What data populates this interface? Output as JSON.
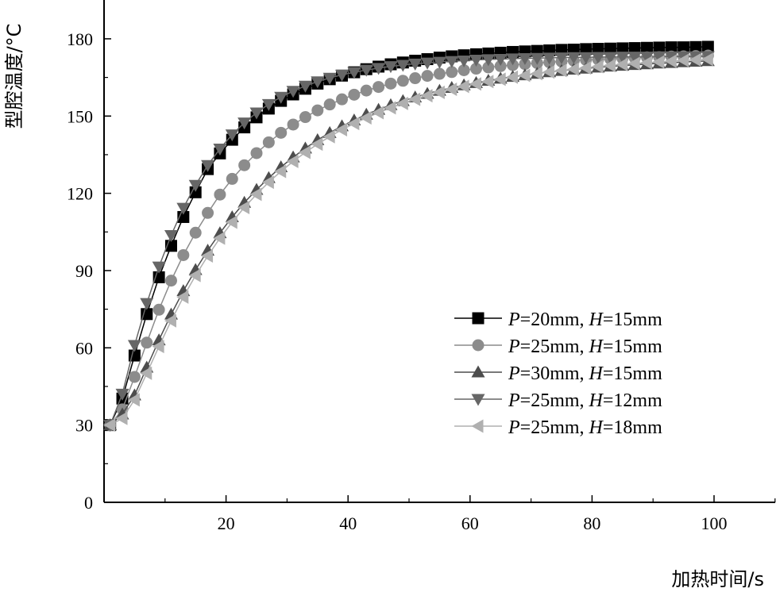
{
  "chart_data": {
    "type": "line",
    "xlabel": "加热时间/s",
    "ylabel": "型腔温度/°C",
    "xlim": [
      0,
      110
    ],
    "ylim": [
      0,
      180
    ],
    "x_ticks": [
      20,
      40,
      60,
      80,
      100
    ],
    "y_ticks": [
      0,
      30,
      60,
      90,
      120,
      150,
      180
    ],
    "grid": false,
    "legend_position": "lower-right",
    "x": [
      1,
      3,
      5,
      7,
      9,
      11,
      13,
      15,
      17,
      19,
      21,
      23,
      25,
      27,
      29,
      31,
      33,
      35,
      37,
      39,
      41,
      43,
      45,
      47,
      49,
      51,
      53,
      55,
      57,
      59,
      61,
      63,
      65,
      67,
      69,
      71,
      73,
      75,
      77,
      79,
      81,
      83,
      85,
      87,
      89,
      91,
      93,
      95,
      97,
      99
    ],
    "series": [
      {
        "name": "P=20mm, H=15mm",
        "name_parts": {
          "p_var": "P",
          "p_val": "=20mm, ",
          "h_var": "H",
          "h_val": "=15mm"
        },
        "marker": "square",
        "color": "#000000",
        "values": [
          30.0,
          40.3,
          57.0,
          73.1,
          87.4,
          99.6,
          110.8,
          120.4,
          129.4,
          135.5,
          140.8,
          145.6,
          149.5,
          152.9,
          155.9,
          158.4,
          160.6,
          162.6,
          164.3,
          165.7,
          167.0,
          168.2,
          169.2,
          170.1,
          170.8,
          171.5,
          172.1,
          172.7,
          173.2,
          173.6,
          174.0,
          174.3,
          174.6,
          174.9,
          175.1,
          175.3,
          175.5,
          175.7,
          175.8,
          176.0,
          176.1,
          176.2,
          176.3,
          176.4,
          176.5,
          176.6,
          176.7,
          176.7,
          176.8,
          176.9
        ]
      },
      {
        "name": "P=25mm, H=15mm",
        "name_parts": {
          "p_var": "P",
          "p_val": "=25mm, ",
          "h_var": "H",
          "h_val": "=15mm"
        },
        "marker": "circle",
        "color": "#8c8c8c",
        "values": [
          30.0,
          36.1,
          48.7,
          62.0,
          74.8,
          86.1,
          96.0,
          104.7,
          112.4,
          119.5,
          125.6,
          130.9,
          135.6,
          139.8,
          143.5,
          146.7,
          149.6,
          152.2,
          154.5,
          156.5,
          158.3,
          159.9,
          161.3,
          162.6,
          163.7,
          164.7,
          165.6,
          166.4,
          167.1,
          167.8,
          168.4,
          168.9,
          169.4,
          169.8,
          170.2,
          170.6,
          170.9,
          171.2,
          171.5,
          171.8,
          172.0,
          172.2,
          172.4,
          172.6,
          172.8,
          172.9,
          173.1,
          173.2,
          173.3,
          173.5
        ]
      },
      {
        "name": "P=30mm, H=15mm",
        "name_parts": {
          "p_var": "P",
          "p_val": "=30mm, ",
          "h_var": "H",
          "h_val": "=15mm"
        },
        "marker": "triangle-up",
        "color": "#4d4d4d",
        "values": [
          30.0,
          34.2,
          41.6,
          52.4,
          63.0,
          73.0,
          82.1,
          90.3,
          97.8,
          104.6,
          110.8,
          116.4,
          121.4,
          126.0,
          130.2,
          134.0,
          137.5,
          140.7,
          143.5,
          146.1,
          148.4,
          150.6,
          152.5,
          154.3,
          155.9,
          157.3,
          158.7,
          159.9,
          161.0,
          162.0,
          162.9,
          163.8,
          164.6,
          165.3,
          165.9,
          166.5,
          167.1,
          167.6,
          168.1,
          168.5,
          168.9,
          169.3,
          169.6,
          169.9,
          170.2,
          170.5,
          170.7,
          171.0,
          171.2,
          171.4
        ]
      },
      {
        "name": "P=25mm, H=12mm",
        "name_parts": {
          "p_var": "P",
          "p_val": "=25mm, ",
          "h_var": "H",
          "h_val": "=12mm"
        },
        "marker": "triangle-down",
        "color": "#666666",
        "values": [
          30.0,
          42.1,
          61.0,
          77.3,
          91.5,
          103.7,
          114.3,
          123.2,
          130.9,
          137.3,
          142.8,
          147.4,
          151.3,
          154.6,
          157.4,
          159.7,
          161.7,
          163.4,
          164.8,
          166.0,
          167.0,
          167.9,
          168.6,
          169.3,
          169.8,
          170.3,
          170.7,
          171.0,
          171.3,
          171.5,
          171.8,
          172.0,
          172.1,
          172.3,
          172.4,
          172.5,
          172.6,
          172.7,
          172.8,
          172.8,
          172.9,
          172.9,
          173.0,
          173.0,
          173.0,
          173.1,
          173.1,
          173.1,
          173.1,
          173.2
        ]
      },
      {
        "name": "P=25mm, H=18mm",
        "name_parts": {
          "p_var": "P",
          "p_val": "=25mm, ",
          "h_var": "H",
          "h_val": "=18mm"
        },
        "marker": "triangle-left",
        "color": "#b0b0b0",
        "values": [
          30.0,
          32.6,
          39.8,
          50.1,
          60.5,
          70.5,
          79.7,
          88.1,
          95.7,
          102.6,
          108.8,
          114.5,
          119.6,
          124.3,
          128.5,
          132.4,
          135.9,
          139.1,
          142.0,
          144.7,
          147.1,
          149.3,
          151.3,
          153.2,
          154.9,
          156.5,
          157.9,
          159.2,
          160.4,
          161.5,
          162.5,
          163.4,
          164.3,
          165.1,
          165.8,
          166.5,
          167.1,
          167.7,
          168.2,
          168.7,
          169.2,
          169.6,
          170.0,
          170.4,
          170.7,
          171.0,
          171.3,
          171.6,
          171.8,
          172.0
        ]
      }
    ]
  }
}
